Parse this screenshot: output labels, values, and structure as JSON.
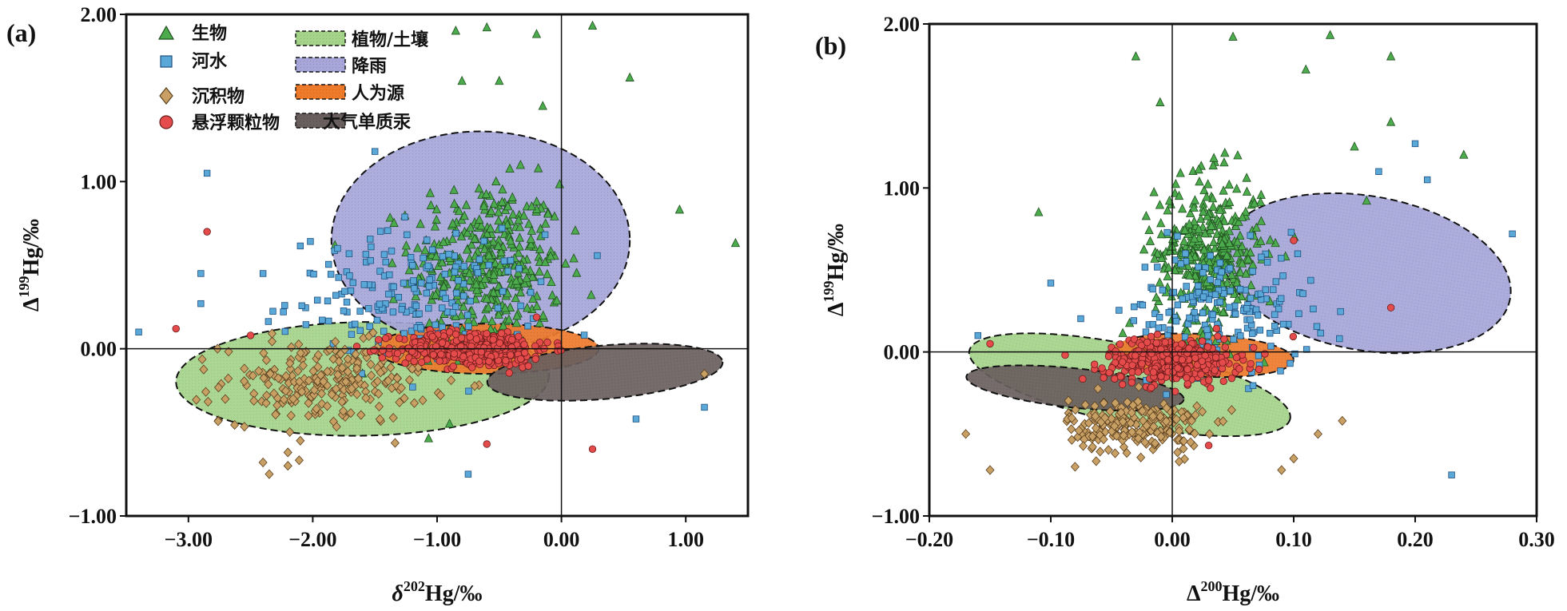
{
  "colors": {
    "bio": "#4cab4c",
    "river": "#5aa8d8",
    "sed": "#c9a064",
    "spm": "#e64b4b",
    "plant_soil": "#a5d38a",
    "precip": "#a6a6d8",
    "anthro": "#ee7a2c",
    "atm": "#6a5f5f"
  },
  "panels": [
    {
      "label": "(a)",
      "xlabel": {
        "pre": "δ",
        "sup": "202",
        "post": "Hg/‰"
      },
      "ylabel": {
        "pre": "Δ",
        "sup": "199",
        "post": "Hg/‰"
      },
      "xticks": [
        "−3.00",
        "−2.00",
        "−1.00",
        "0.00",
        "1.00"
      ],
      "yticks": [
        "2.00",
        "1.00",
        "0.00",
        "−1.00"
      ]
    },
    {
      "label": "(b)",
      "xlabel": {
        "pre": "Δ",
        "sup": "200",
        "post": "Hg/‰"
      },
      "ylabel": {
        "pre": "Δ",
        "sup": "199",
        "post": "Hg/‰"
      },
      "xticks": [
        "−0.20",
        "−0.10",
        "0.00",
        "0.10",
        "0.20",
        "0.30"
      ],
      "yticks": [
        "2.00",
        "1.00",
        "0.00",
        "−1.00"
      ]
    }
  ],
  "legend": {
    "points": [
      "生物",
      "河水",
      "沉积物",
      "悬浮颗粒物"
    ],
    "areas": [
      "植物/土壤",
      "降雨",
      "人为源",
      "大气单质汞"
    ]
  },
  "chart_data": [
    {
      "type": "scatter",
      "xlabel": "δ202Hg/‰",
      "ylabel": "Δ199Hg/‰",
      "xlim": [
        -3.5,
        1.5
      ],
      "ylim": [
        -1.0,
        2.0
      ],
      "grid": false,
      "legend_position": "top-left",
      "reference_lines": {
        "x": 0,
        "y": 0
      },
      "regions": [
        {
          "name": "植物/土壤",
          "center": [
            -1.6,
            -0.18
          ],
          "semi_axes": [
            1.5,
            0.34
          ],
          "angle_deg": 1
        },
        {
          "name": "降雨",
          "center": [
            -0.65,
            0.65
          ],
          "semi_axes": [
            1.2,
            0.65
          ],
          "angle_deg": 0
        },
        {
          "name": "人为源",
          "center": [
            -0.6,
            0.0
          ],
          "semi_axes": [
            0.9,
            0.15
          ],
          "angle_deg": 0
        },
        {
          "name": "大气单质汞",
          "center": [
            0.35,
            -0.14
          ],
          "semi_axes": [
            0.95,
            0.16
          ],
          "angle_deg": 5
        }
      ],
      "series": [
        {
          "name": "生物",
          "marker": "triangle",
          "center": [
            -0.6,
            0.5
          ],
          "spread": [
            0.55,
            0.45
          ],
          "count": 380,
          "x": [
            -0.85,
            -0.6,
            -0.2,
            0.25,
            -0.8,
            0.55,
            1.4,
            0.95,
            -0.15,
            -0.5,
            -1.6,
            -1.9,
            -0.9
          ],
          "y": [
            1.9,
            1.92,
            1.88,
            1.93,
            1.6,
            1.62,
            0.63,
            0.83,
            1.45,
            1.6,
            -0.15,
            -0.2,
            -0.45
          ]
        },
        {
          "name": "河水",
          "marker": "square",
          "center": [
            -1.2,
            0.3
          ],
          "spread": [
            0.9,
            0.35
          ],
          "count": 180,
          "x": [
            -2.85,
            -2.9,
            -3.4,
            -2.9,
            -1.5,
            -0.75,
            0.6,
            1.15,
            -2.4,
            -1.8
          ],
          "y": [
            1.05,
            0.45,
            0.1,
            0.27,
            1.18,
            -0.75,
            -0.42,
            -0.35,
            0.45,
            0.6
          ]
        },
        {
          "name": "沉积物",
          "marker": "diamond",
          "center": [
            -1.9,
            -0.2
          ],
          "spread": [
            0.75,
            0.22
          ],
          "count": 230,
          "x": [
            -2.2,
            -2.4,
            -2.1,
            -2.35,
            -2.2,
            -1.2,
            1.15
          ],
          "y": [
            -0.62,
            -0.68,
            -0.55,
            -0.75,
            -0.7,
            -0.12,
            -0.15
          ]
        },
        {
          "name": "悬浮颗粒物",
          "marker": "circle",
          "center": [
            -0.7,
            0.0
          ],
          "spread": [
            0.55,
            0.1
          ],
          "count": 380,
          "x": [
            -2.85,
            -0.6,
            0.25,
            -3.1,
            -0.9,
            -2.5
          ],
          "y": [
            0.7,
            -0.57,
            -0.6,
            0.12,
            0.1,
            0.08
          ]
        }
      ]
    },
    {
      "type": "scatter",
      "xlabel": "Δ200Hg/‰",
      "ylabel": "Δ199Hg/‰",
      "xlim": [
        -0.2,
        0.3
      ],
      "ylim": [
        -1.0,
        2.0
      ],
      "grid": false,
      "legend_position": "none",
      "reference_lines": {
        "x": 0,
        "y": 0
      },
      "regions": [
        {
          "name": "植物/土壤",
          "center": [
            -0.035,
            -0.2
          ],
          "semi_axes": [
            0.135,
            0.24
          ],
          "angle_deg": -12
        },
        {
          "name": "降雨",
          "center": [
            0.16,
            0.48
          ],
          "semi_axes": [
            0.12,
            0.47
          ],
          "angle_deg": -10
        },
        {
          "name": "人为源",
          "center": [
            0.025,
            -0.02
          ],
          "semi_axes": [
            0.075,
            0.13
          ],
          "angle_deg": -3
        },
        {
          "name": "大气单质汞",
          "center": [
            -0.08,
            -0.22
          ],
          "semi_axes": [
            0.09,
            0.12
          ],
          "angle_deg": -6
        }
      ],
      "series": [
        {
          "name": "生物",
          "marker": "triangle",
          "center": [
            0.03,
            0.6
          ],
          "spread": [
            0.04,
            0.42
          ],
          "count": 380,
          "x": [
            -0.11,
            -0.03,
            0.05,
            0.13,
            0.18,
            0.24,
            0.11,
            0.15,
            0.18,
            0.16,
            -0.01
          ],
          "y": [
            0.85,
            1.8,
            1.92,
            1.93,
            1.8,
            1.2,
            1.72,
            1.25,
            1.4,
            0.92,
            1.52
          ]
        },
        {
          "name": "河水",
          "marker": "square",
          "center": [
            0.04,
            0.25
          ],
          "spread": [
            0.07,
            0.35
          ],
          "count": 180,
          "x": [
            -0.16,
            -0.1,
            0.23,
            0.21,
            0.28,
            0.17,
            0.2
          ],
          "y": [
            0.1,
            0.42,
            -0.75,
            1.05,
            0.72,
            1.1,
            1.27
          ]
        },
        {
          "name": "沉积物",
          "marker": "diamond",
          "center": [
            -0.03,
            -0.45
          ],
          "spread": [
            0.05,
            0.15
          ],
          "count": 230,
          "x": [
            -0.15,
            -0.17,
            -0.08,
            0.09,
            0.14,
            0.12,
            0.1
          ],
          "y": [
            -0.72,
            -0.5,
            -0.7,
            -0.72,
            -0.42,
            -0.5,
            -0.65
          ]
        },
        {
          "name": "悬浮颗粒物",
          "marker": "circle",
          "center": [
            0.0,
            -0.05
          ],
          "spread": [
            0.05,
            0.12
          ],
          "count": 380,
          "x": [
            -0.15,
            0.18,
            0.1,
            0.03
          ],
          "y": [
            0.05,
            0.27,
            0.68,
            -0.57
          ]
        }
      ]
    }
  ]
}
